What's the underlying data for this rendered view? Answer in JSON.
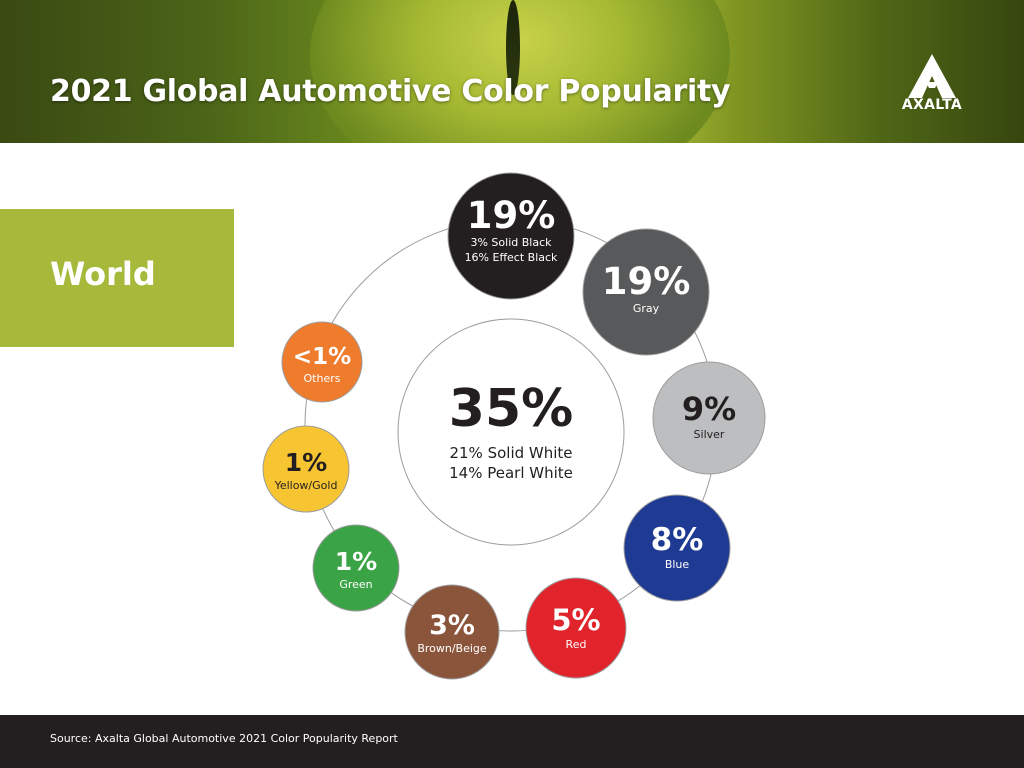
{
  "header": {
    "title": "2021 Global Automotive Color Popularity",
    "logo_text": "AXALTA"
  },
  "region": {
    "label": "World"
  },
  "footer": {
    "source": "Source: Axalta Global Automotive 2021 Color Popularity Report"
  },
  "colors": {
    "accent_green": "#a7b93b",
    "footer_bg": "#231f20"
  },
  "chart_data": {
    "type": "bubble",
    "title": "2021 Global Automotive Color Popularity",
    "center": {
      "name": "White",
      "value": 35,
      "label": "35%",
      "details": [
        "21% Solid White",
        "14% Pearl White"
      ]
    },
    "categories": [
      "Black",
      "Gray",
      "Silver",
      "Blue",
      "Red",
      "Brown/Beige",
      "Green",
      "Yellow/Gold",
      "Others"
    ],
    "values": [
      19,
      19,
      9,
      8,
      5,
      3,
      1,
      1,
      0.5
    ],
    "bubbles": [
      {
        "name": "Black",
        "label": "19%",
        "value": 19,
        "details": [
          "3% Solid Black",
          "16% Effect Black"
        ],
        "color": "#231f20"
      },
      {
        "name": "Gray",
        "label": "19%",
        "value": 19,
        "details": [
          "Gray"
        ],
        "color": "#58595b"
      },
      {
        "name": "Silver",
        "label": "9%",
        "value": 9,
        "details": [
          "Silver"
        ],
        "color": "#bcbec0"
      },
      {
        "name": "Blue",
        "label": "8%",
        "value": 8,
        "details": [
          "Blue"
        ],
        "color": "#1f3a93"
      },
      {
        "name": "Red",
        "label": "5%",
        "value": 5,
        "details": [
          "Red"
        ],
        "color": "#e1242b"
      },
      {
        "name": "Brown/Beige",
        "label": "3%",
        "value": 3,
        "details": [
          "Brown/Beige"
        ],
        "color": "#8b553b"
      },
      {
        "name": "Green",
        "label": "1%",
        "value": 1,
        "details": [
          "Green"
        ],
        "color": "#3aa346"
      },
      {
        "name": "Yellow/Gold",
        "label": "1%",
        "value": 1,
        "details": [
          "Yellow/Gold"
        ],
        "color": "#f7c532"
      },
      {
        "name": "Others",
        "label": "<1%",
        "value": 0.5,
        "details": [
          "Others"
        ],
        "color": "#ef7b2d"
      }
    ]
  }
}
